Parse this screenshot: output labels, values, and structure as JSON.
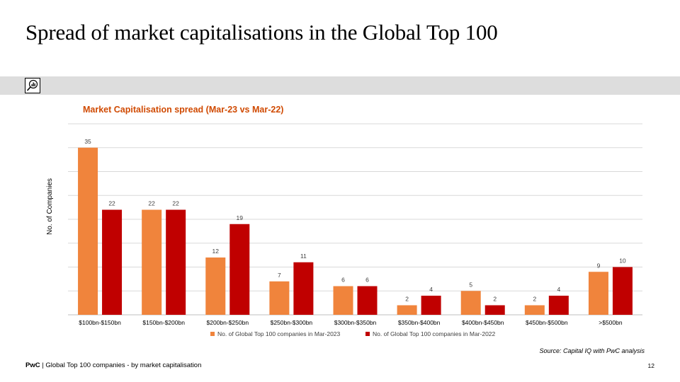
{
  "slide": {
    "title": "Spread of market capitalisations in the Global Top 100",
    "source": "Source: Capital IQ with PwC analysis",
    "footer_brand": "PwC",
    "footer_separator": " | ",
    "footer_text": "Global Top 100 companies - by market capitalisation",
    "page_number": "12",
    "band_icon": "magnifier-chart-icon"
  },
  "colors": {
    "series_2023": "#f0843c",
    "series_2022": "#c00000",
    "chart_title": "#d04a02",
    "grid": "#d9d9d9",
    "band": "#dddddd"
  },
  "chart_data": {
    "type": "bar",
    "title": "Market Capitalisation spread (Mar-23 vs Mar-22)",
    "ylabel": "No. of Companies",
    "xlabel": "",
    "ylim": [
      0,
      40
    ],
    "grid": true,
    "legend_position": "bottom",
    "categories": [
      "$100bn-$150bn",
      "$150bn-$200bn",
      "$200bn-$250bn",
      "$250bn-$300bn",
      "$300bn-$350bn",
      "$350bn-$400bn",
      "$400bn-$450bn",
      "$450bn-$500bn",
      ">$500bn"
    ],
    "series": [
      {
        "name": "No. of Global Top 100 companies in Mar-2023",
        "color": "#f0843c",
        "values": [
          35,
          22,
          12,
          7,
          6,
          2,
          5,
          2,
          9
        ]
      },
      {
        "name": "No. of Global Top 100 companies in Mar-2022",
        "color": "#c00000",
        "values": [
          22,
          22,
          19,
          11,
          6,
          4,
          2,
          4,
          10
        ]
      }
    ]
  }
}
